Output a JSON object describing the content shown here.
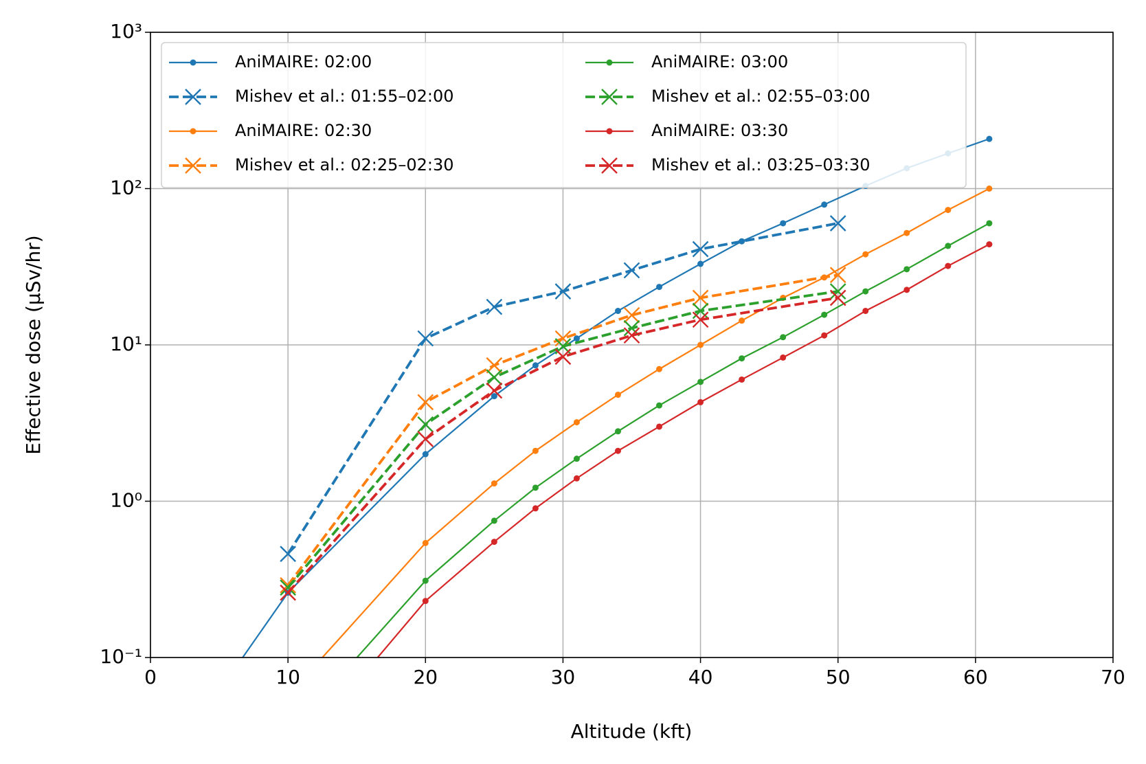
{
  "chart_data": {
    "type": "line",
    "xlabel": "Altitude (kft)",
    "ylabel": "Effective dose (μSv/hr)",
    "xlim": [
      0,
      70
    ],
    "xticks": [
      0,
      10,
      20,
      30,
      40,
      50,
      60,
      70
    ],
    "ylim": [
      0.1,
      1000
    ],
    "yscale": "log",
    "yticks": [
      {
        "value": 0.1,
        "label": "10⁻¹"
      },
      {
        "value": 1,
        "label": "10⁰"
      },
      {
        "value": 10,
        "label": "10¹"
      },
      {
        "value": 100,
        "label": "10²"
      },
      {
        "value": 1000,
        "label": "10³"
      }
    ],
    "grid": true,
    "legend": "upper left",
    "legend_columns": 2,
    "series": [
      {
        "name": "AniMAIRE: 02:00",
        "color": "#1f77b4",
        "linestyle": "solid",
        "marker": "dot",
        "x": [
          5,
          10,
          20,
          25,
          28,
          31,
          34,
          37,
          40,
          43,
          46,
          49,
          52,
          55,
          58,
          61
        ],
        "values": [
          0.061,
          0.26,
          2.0,
          4.7,
          7.4,
          11,
          16.5,
          23.5,
          33,
          46,
          60,
          79,
          104,
          135,
          168,
          208
        ]
      },
      {
        "name": "Mishev et al.: 01:55–02:00",
        "color": "#1f77b4",
        "linestyle": "dashed",
        "marker": "x",
        "x": [
          10,
          20,
          25,
          30,
          35,
          40,
          50
        ],
        "values": [
          0.46,
          11,
          17.5,
          22,
          30,
          41,
          60
        ]
      },
      {
        "name": "AniMAIRE: 02:30",
        "color": "#ff7f0e",
        "linestyle": "solid",
        "marker": "dot",
        "x": [
          10,
          20,
          25,
          28,
          31,
          34,
          37,
          40,
          43,
          46,
          49,
          52,
          55,
          58,
          61
        ],
        "values": [
          0.057,
          0.54,
          1.3,
          2.1,
          3.2,
          4.8,
          7.0,
          10,
          14.3,
          20,
          27,
          38,
          52,
          73,
          100
        ]
      },
      {
        "name": "Mishev et al.: 02:25–02:30",
        "color": "#ff7f0e",
        "linestyle": "dashed",
        "marker": "x",
        "x": [
          10,
          20,
          25,
          30,
          35,
          40,
          50
        ],
        "values": [
          0.29,
          4.3,
          7.4,
          11,
          15.5,
          20,
          28
        ]
      },
      {
        "name": "AniMAIRE: 03:00",
        "color": "#2ca02c",
        "linestyle": "solid",
        "marker": "dot",
        "x": [
          10,
          20,
          25,
          28,
          31,
          34,
          37,
          40,
          43,
          46,
          49,
          52,
          55,
          58,
          61
        ],
        "values": [
          0.032,
          0.31,
          0.75,
          1.22,
          1.87,
          2.8,
          4.1,
          5.8,
          8.2,
          11.2,
          15.6,
          22,
          30.5,
          43,
          60
        ]
      },
      {
        "name": "Mishev et al.: 02:55–03:00",
        "color": "#2ca02c",
        "linestyle": "dashed",
        "marker": "x",
        "x": [
          10,
          20,
          25,
          30,
          35,
          40,
          50
        ],
        "values": [
          0.28,
          3.1,
          6.2,
          9.8,
          12.8,
          16.5,
          22
        ]
      },
      {
        "name": "AniMAIRE: 03:30",
        "color": "#d62728",
        "linestyle": "solid",
        "marker": "dot",
        "x": [
          10,
          20,
          25,
          28,
          31,
          34,
          37,
          40,
          43,
          46,
          49,
          52,
          55,
          58,
          61
        ],
        "values": [
          0.021,
          0.23,
          0.55,
          0.9,
          1.4,
          2.1,
          3.0,
          4.3,
          6.0,
          8.3,
          11.5,
          16.5,
          22.5,
          32,
          44
        ]
      },
      {
        "name": "Mishev et al.: 03:25–03:30",
        "color": "#d62728",
        "linestyle": "dashed",
        "marker": "x",
        "x": [
          10,
          20,
          25,
          30,
          35,
          40,
          50
        ],
        "values": [
          0.26,
          2.5,
          5.1,
          8.4,
          11.5,
          14.5,
          20
        ]
      }
    ]
  }
}
